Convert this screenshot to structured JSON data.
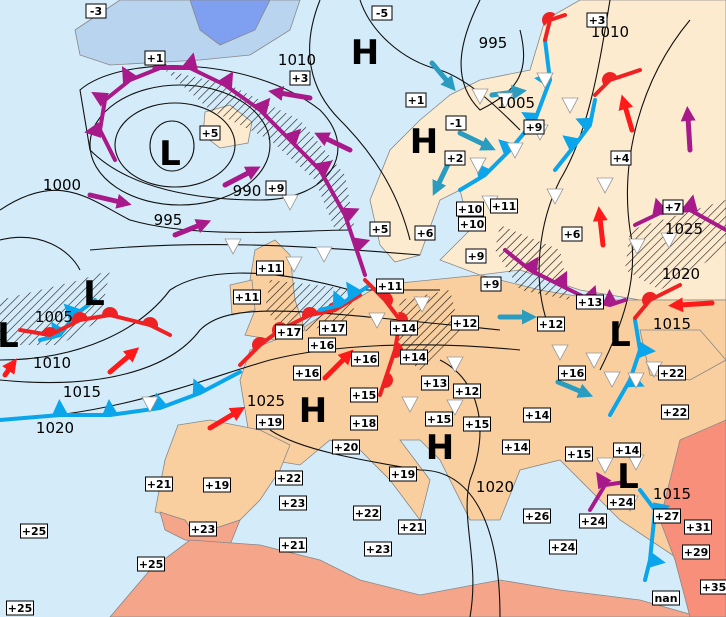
{
  "colors": {
    "sea": "#d4ecf9",
    "land_mild": "#fdebd0",
    "land_warm": "#f9cfa0",
    "land_hot": "#f4a58a",
    "land_cold": "#9ec6ea",
    "cold_front": "#0aa5ea",
    "warm_front": "#ee2222",
    "occluded_front": "#a8198a",
    "cold_advection_arrow": "#2a9cc0",
    "warm_advection_arrow": "#ff1a1a"
  },
  "temperatures": [
    "-3",
    "+1",
    "+3",
    "+5",
    "+9",
    "+11",
    "+11",
    "-5",
    "+3",
    "+1",
    "-1",
    "+2",
    "+9",
    "+4",
    "+7",
    "+5",
    "+6",
    "+10",
    "+10",
    "+11",
    "+6",
    "+9",
    "+9",
    "+11",
    "+13",
    "+17",
    "+17",
    "+16",
    "+16",
    "+16",
    "+14",
    "+14",
    "+12",
    "+12",
    "+13",
    "+12",
    "+15",
    "+18",
    "+15",
    "+15",
    "+14",
    "+14",
    "+16",
    "+22",
    "+22",
    "+15",
    "+14",
    "+19",
    "+20",
    "+22",
    "+23",
    "+19",
    "+21",
    "+23",
    "+22",
    "+19",
    "+21",
    "+21",
    "+23",
    "+25",
    "+25",
    "+25",
    "+26",
    "+24",
    "+24",
    "+24",
    "+27",
    "+31",
    "+29",
    "+35",
    "nan"
  ],
  "isobar_labels": [
    "1010",
    "995",
    "1010",
    "1005",
    "1000",
    "990",
    "995",
    "1025",
    "1020",
    "1005",
    "1010",
    "1015",
    "1020",
    "1025",
    "1015",
    "1020",
    "1015"
  ],
  "pressure_centers": [
    "L",
    "H",
    "H",
    "L",
    "L",
    "H",
    "H",
    "L",
    "L"
  ],
  "legend_icons": [
    "cold-front",
    "warm-front",
    "occluded-front",
    "trough-triangle",
    "wind-arrow",
    "precipitation-hatch"
  ]
}
